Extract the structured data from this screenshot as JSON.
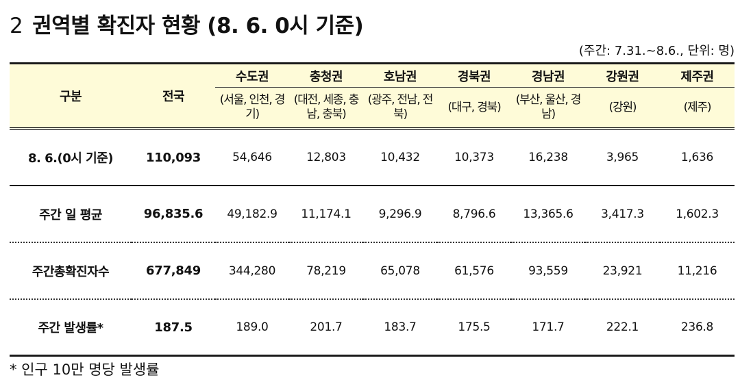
{
  "title": {
    "number": "2",
    "text": "권역별 확진자 현황 (8. 6. 0시 기준)"
  },
  "unit_note": "(주간: 7.31.~8.6., 단위: 명)",
  "table": {
    "header": {
      "category": "구분",
      "national": "전국",
      "regions": [
        {
          "name": "수도권",
          "sub": "(서울, 인천, 경기)"
        },
        {
          "name": "충청권",
          "sub": "(대전, 세종, 충남, 충북)"
        },
        {
          "name": "호남권",
          "sub": "(광주, 전남, 전북)"
        },
        {
          "name": "경북권",
          "sub": "(대구, 경북)"
        },
        {
          "name": "경남권",
          "sub": "(부산, 울산, 경남)"
        },
        {
          "name": "강원권",
          "sub": "(강원)"
        },
        {
          "name": "제주권",
          "sub": "(제주)"
        }
      ]
    },
    "rows": [
      {
        "label": "8. 6.(0시 기준)",
        "national": "110,093",
        "values": [
          "54,646",
          "12,803",
          "10,432",
          "10,373",
          "16,238",
          "3,965",
          "1,636"
        ]
      },
      {
        "label": "주간 일 평균",
        "national": "96,835.6",
        "values": [
          "49,182.9",
          "11,174.1",
          "9,296.9",
          "8,796.6",
          "13,365.6",
          "3,417.3",
          "1,602.3"
        ]
      },
      {
        "label": "주간총확진자수",
        "national": "677,849",
        "values": [
          "344,280",
          "78,219",
          "65,078",
          "61,576",
          "93,559",
          "23,921",
          "11,216"
        ]
      },
      {
        "label": "주간 발생률*",
        "national": "187.5",
        "values": [
          "189.0",
          "201.7",
          "183.7",
          "175.5",
          "171.7",
          "222.1",
          "236.8"
        ]
      }
    ]
  },
  "footnote": "* 인구 10만 명당 발생률",
  "colors": {
    "header_bg": "#fefbd8",
    "rule": "#1a1a1a"
  }
}
